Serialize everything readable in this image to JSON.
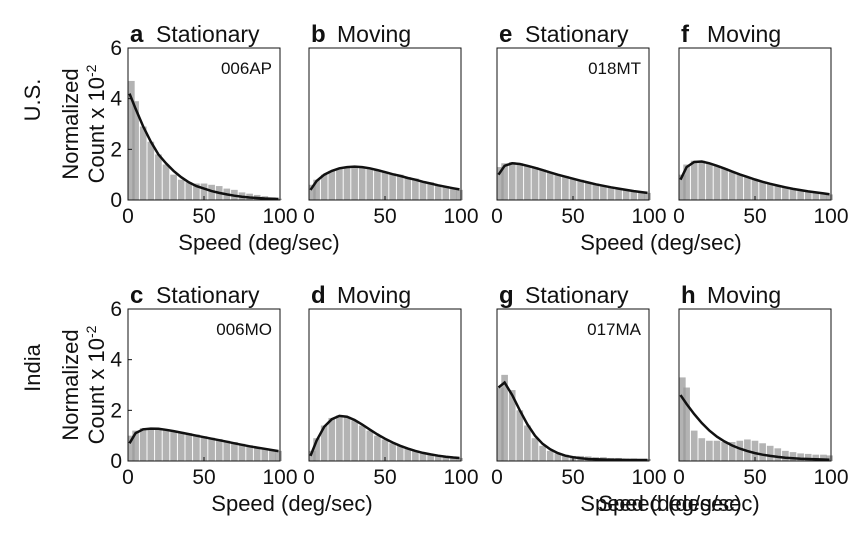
{
  "figure": {
    "row_labels": [
      "U.S.",
      "India"
    ],
    "ylabel_line1": "Normalized",
    "ylabel_line2": "Count x 10",
    "ylabel_exponent": "-2",
    "xlabel": "Speed (deg/sec)",
    "bar_color": "#9a9a9a",
    "curve_color": "#111111"
  },
  "chart_data": [
    {
      "type": "bar",
      "panel": "a",
      "title": "Stationary",
      "annotation": "006AP",
      "row": "U.S.",
      "xlim": [
        0,
        100
      ],
      "ylim": [
        0,
        6
      ],
      "xticks": [
        0,
        50,
        100
      ],
      "yticks": [
        0,
        2,
        4,
        6
      ],
      "show_yticks": true,
      "show_xlabel": true,
      "x": [
        1,
        5,
        10,
        15,
        20,
        25,
        30,
        35,
        40,
        45,
        50,
        55,
        60,
        65,
        70,
        75,
        80,
        85,
        90,
        95,
        99
      ],
      "bars": [
        4.7,
        3.9,
        2.9,
        2.3,
        1.8,
        1.4,
        1.0,
        0.8,
        0.7,
        0.65,
        0.65,
        0.6,
        0.55,
        0.45,
        0.4,
        0.3,
        0.25,
        0.2,
        0.15,
        0.1,
        0.05
      ],
      "curve": [
        4.2,
        3.6,
        2.9,
        2.3,
        1.8,
        1.45,
        1.15,
        0.9,
        0.7,
        0.55,
        0.45,
        0.35,
        0.28,
        0.22,
        0.17,
        0.13,
        0.1,
        0.08,
        0.06,
        0.05,
        0.04
      ]
    },
    {
      "type": "bar",
      "panel": "b",
      "title": "Moving",
      "annotation": "",
      "row": "U.S.",
      "xlim": [
        0,
        100
      ],
      "ylim": [
        0,
        6
      ],
      "xticks": [
        0,
        50,
        100
      ],
      "yticks": [
        0,
        2,
        4,
        6
      ],
      "show_yticks": false,
      "show_xlabel": false,
      "x": [
        1,
        5,
        10,
        15,
        20,
        25,
        30,
        35,
        40,
        45,
        50,
        55,
        60,
        65,
        70,
        75,
        80,
        85,
        90,
        95,
        99
      ],
      "bars": [
        0.6,
        0.8,
        1.0,
        1.15,
        1.25,
        1.3,
        1.3,
        1.28,
        1.25,
        1.2,
        1.1,
        1.05,
        1.0,
        0.9,
        0.85,
        0.75,
        0.7,
        0.6,
        0.55,
        0.45,
        0.4
      ],
      "curve": [
        0.4,
        0.75,
        1.0,
        1.15,
        1.25,
        1.3,
        1.32,
        1.3,
        1.25,
        1.18,
        1.1,
        1.02,
        0.95,
        0.87,
        0.8,
        0.72,
        0.65,
        0.58,
        0.52,
        0.46,
        0.42
      ]
    },
    {
      "type": "bar",
      "panel": "e",
      "title": "Stationary",
      "annotation": "018MT",
      "row": "U.S.",
      "xlim": [
        0,
        100
      ],
      "ylim": [
        0,
        6
      ],
      "xticks": [
        0,
        50,
        100
      ],
      "yticks": [
        0,
        2,
        4,
        6
      ],
      "show_yticks": false,
      "show_xlabel": true,
      "x": [
        1,
        5,
        10,
        15,
        20,
        25,
        30,
        35,
        40,
        45,
        50,
        55,
        60,
        65,
        70,
        75,
        80,
        85,
        90,
        95,
        99
      ],
      "bars": [
        1.3,
        1.45,
        1.5,
        1.45,
        1.35,
        1.3,
        1.2,
        1.1,
        1.0,
        0.95,
        0.85,
        0.8,
        0.7,
        0.65,
        0.55,
        0.5,
        0.45,
        0.4,
        0.35,
        0.3,
        0.28
      ],
      "curve": [
        1.0,
        1.35,
        1.45,
        1.42,
        1.35,
        1.27,
        1.18,
        1.09,
        1.0,
        0.92,
        0.84,
        0.76,
        0.69,
        0.62,
        0.56,
        0.5,
        0.45,
        0.4,
        0.35,
        0.31,
        0.28
      ]
    },
    {
      "type": "bar",
      "panel": "f",
      "title": "Moving",
      "annotation": "",
      "row": "U.S.",
      "xlim": [
        0,
        100
      ],
      "ylim": [
        0,
        6
      ],
      "xticks": [
        0,
        50,
        100
      ],
      "yticks": [
        0,
        2,
        4,
        6
      ],
      "show_yticks": false,
      "show_xlabel": false,
      "x": [
        1,
        5,
        10,
        15,
        20,
        25,
        30,
        35,
        40,
        45,
        50,
        55,
        60,
        65,
        70,
        75,
        80,
        85,
        90,
        95,
        99
      ],
      "bars": [
        1.0,
        1.4,
        1.55,
        1.55,
        1.45,
        1.35,
        1.25,
        1.1,
        1.0,
        0.9,
        0.8,
        0.72,
        0.65,
        0.58,
        0.5,
        0.45,
        0.4,
        0.35,
        0.3,
        0.26,
        0.22
      ],
      "curve": [
        0.8,
        1.3,
        1.5,
        1.52,
        1.45,
        1.35,
        1.24,
        1.12,
        1.01,
        0.91,
        0.81,
        0.72,
        0.64,
        0.57,
        0.5,
        0.44,
        0.39,
        0.34,
        0.3,
        0.26,
        0.23
      ]
    },
    {
      "type": "bar",
      "panel": "c",
      "title": "Stationary",
      "annotation": "006MO",
      "row": "India",
      "xlim": [
        0,
        100
      ],
      "ylim": [
        0,
        6
      ],
      "xticks": [
        0,
        50,
        100
      ],
      "yticks": [
        0,
        2,
        4,
        6
      ],
      "show_yticks": true,
      "show_xlabel": true,
      "x": [
        1,
        5,
        10,
        15,
        20,
        25,
        30,
        35,
        40,
        45,
        50,
        55,
        60,
        65,
        70,
        75,
        80,
        85,
        90,
        95,
        99
      ],
      "bars": [
        1.0,
        1.2,
        1.3,
        1.3,
        1.28,
        1.25,
        1.2,
        1.15,
        1.1,
        1.05,
        0.98,
        0.92,
        0.87,
        0.8,
        0.75,
        0.68,
        0.62,
        0.55,
        0.5,
        0.45,
        0.4
      ],
      "curve": [
        0.7,
        1.1,
        1.25,
        1.28,
        1.27,
        1.23,
        1.18,
        1.12,
        1.06,
        1.0,
        0.94,
        0.88,
        0.82,
        0.76,
        0.7,
        0.64,
        0.58,
        0.53,
        0.48,
        0.43,
        0.39
      ]
    },
    {
      "type": "bar",
      "panel": "d",
      "title": "Moving",
      "annotation": "",
      "row": "India",
      "xlim": [
        0,
        100
      ],
      "ylim": [
        0,
        6
      ],
      "xticks": [
        0,
        50,
        100
      ],
      "yticks": [
        0,
        2,
        4,
        6
      ],
      "show_yticks": false,
      "show_xlabel": false,
      "x": [
        1,
        5,
        10,
        15,
        20,
        25,
        30,
        35,
        40,
        45,
        50,
        55,
        60,
        65,
        70,
        75,
        80,
        85,
        90,
        95,
        99
      ],
      "bars": [
        0.4,
        0.9,
        1.4,
        1.7,
        1.8,
        1.75,
        1.6,
        1.4,
        1.2,
        1.0,
        0.85,
        0.7,
        0.6,
        0.5,
        0.4,
        0.33,
        0.27,
        0.22,
        0.18,
        0.15,
        0.12
      ],
      "curve": [
        0.2,
        0.8,
        1.35,
        1.65,
        1.78,
        1.75,
        1.62,
        1.44,
        1.24,
        1.05,
        0.88,
        0.73,
        0.6,
        0.49,
        0.4,
        0.32,
        0.26,
        0.21,
        0.17,
        0.14,
        0.12
      ]
    },
    {
      "type": "bar",
      "panel": "g",
      "title": "Stationary",
      "annotation": "017MA",
      "row": "India",
      "xlim": [
        0,
        100
      ],
      "ylim": [
        0,
        6
      ],
      "xticks": [
        0,
        50,
        100
      ],
      "yticks": [
        0,
        2,
        4,
        6
      ],
      "show_yticks": false,
      "show_xlabel": true,
      "x": [
        1,
        5,
        10,
        15,
        20,
        25,
        30,
        35,
        40,
        45,
        50,
        55,
        60,
        65,
        70,
        75,
        80,
        85,
        90,
        95,
        99
      ],
      "bars": [
        2.9,
        3.4,
        2.8,
        2.0,
        1.4,
        0.9,
        0.6,
        0.4,
        0.3,
        0.25,
        0.2,
        0.2,
        0.18,
        0.15,
        0.15,
        0.12,
        0.12,
        0.1,
        0.1,
        0.08,
        0.08
      ],
      "curve": [
        2.9,
        3.1,
        2.6,
        2.0,
        1.45,
        1.0,
        0.68,
        0.46,
        0.31,
        0.21,
        0.15,
        0.11,
        0.08,
        0.07,
        0.06,
        0.05,
        0.05,
        0.04,
        0.04,
        0.04,
        0.04
      ]
    },
    {
      "type": "bar",
      "panel": "h",
      "title": "Moving",
      "annotation": "",
      "row": "India",
      "xlim": [
        0,
        100
      ],
      "ylim": [
        0,
        6
      ],
      "xticks": [
        0,
        50,
        100
      ],
      "yticks": [
        0,
        2,
        4,
        6
      ],
      "show_yticks": false,
      "show_xlabel": true,
      "x": [
        1,
        5,
        10,
        15,
        20,
        25,
        30,
        35,
        40,
        45,
        50,
        55,
        60,
        65,
        70,
        75,
        80,
        85,
        90,
        95,
        99
      ],
      "bars": [
        3.3,
        2.9,
        1.2,
        0.9,
        0.8,
        0.8,
        0.75,
        0.75,
        0.8,
        0.85,
        0.8,
        0.7,
        0.6,
        0.5,
        0.4,
        0.35,
        0.3,
        0.28,
        0.25,
        0.25,
        0.22
      ],
      "curve": [
        2.6,
        2.25,
        1.85,
        1.5,
        1.2,
        0.96,
        0.77,
        0.61,
        0.49,
        0.39,
        0.31,
        0.25,
        0.2,
        0.16,
        0.13,
        0.11,
        0.09,
        0.08,
        0.07,
        0.06,
        0.05
      ]
    }
  ]
}
